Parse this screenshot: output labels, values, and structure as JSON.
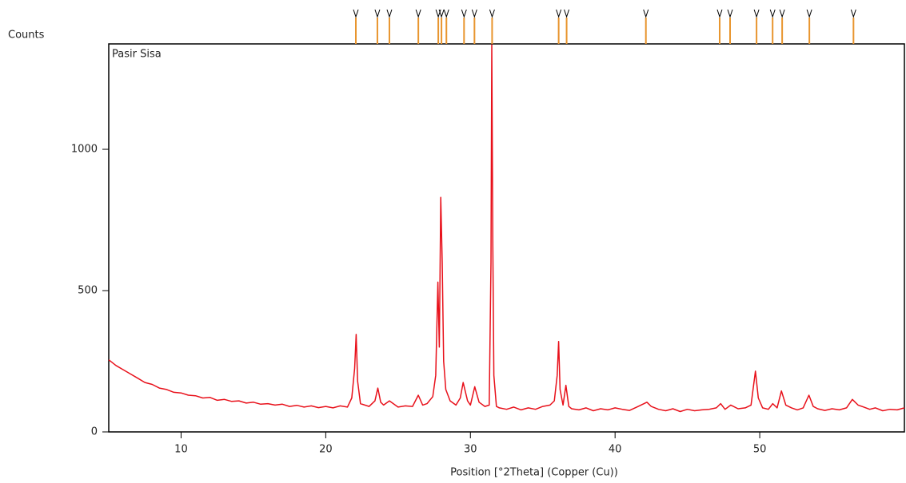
{
  "chart_data": {
    "type": "line",
    "y_label": "Counts",
    "x_label": "Position [°2Theta] (Copper (Cu))",
    "xlim": [
      5,
      60
    ],
    "ylim": [
      0,
      1373
    ],
    "xticks": [
      10,
      20,
      30,
      40,
      50
    ],
    "yticks": [
      0,
      500,
      1000
    ],
    "reference_peaks": [
      22.08,
      23.57,
      24.4,
      26.4,
      27.78,
      28.0,
      28.34,
      29.56,
      30.28,
      31.5,
      36.1,
      36.65,
      42.13,
      47.23,
      47.95,
      49.78,
      50.89,
      51.55,
      53.43,
      56.48
    ],
    "reference_color": "#e8952e",
    "x": [
      5,
      5.5,
      6,
      6.5,
      7,
      7.5,
      8,
      8.5,
      9,
      9.5,
      10,
      10.5,
      11,
      11.5,
      12,
      12.5,
      13,
      13.5,
      14,
      14.5,
      15,
      15.5,
      16,
      16.5,
      17,
      17.5,
      18,
      18.5,
      19,
      19.5,
      20,
      20.5,
      21,
      21.5,
      21.8,
      22,
      22.1,
      22.2,
      22.4,
      23,
      23.4,
      23.6,
      23.8,
      24,
      24.4,
      25,
      25.5,
      26,
      26.4,
      26.7,
      27,
      27.4,
      27.6,
      27.75,
      27.85,
      27.95,
      28.05,
      28.15,
      28.3,
      28.6,
      29,
      29.3,
      29.5,
      29.8,
      30,
      30.3,
      30.6,
      31,
      31.3,
      31.42,
      31.48,
      31.55,
      31.62,
      31.8,
      32,
      32.5,
      33,
      33.5,
      34,
      34.5,
      35,
      35.5,
      35.8,
      36,
      36.1,
      36.2,
      36.4,
      36.6,
      36.8,
      37,
      37.5,
      38,
      38.5,
      39,
      39.5,
      40,
      40.5,
      41,
      41.5,
      42,
      42.2,
      42.5,
      43,
      43.5,
      44,
      44.5,
      45,
      45.5,
      46,
      46.5,
      47,
      47.3,
      47.6,
      48,
      48.5,
      49,
      49.4,
      49.7,
      49.9,
      50.2,
      50.6,
      50.9,
      51.2,
      51.5,
      51.8,
      52.2,
      52.6,
      53,
      53.4,
      53.7,
      54,
      54.5,
      55,
      55.5,
      56,
      56.4,
      56.8,
      57.2,
      57.6,
      58,
      58.5,
      59,
      59.5,
      60
    ],
    "series": [
      {
        "name": "Pasir Sisa",
        "color": "#e8101a",
        "values": [
          255,
          235,
          220,
          205,
          190,
          175,
          168,
          155,
          150,
          140,
          138,
          130,
          128,
          120,
          122,
          112,
          115,
          108,
          110,
          102,
          105,
          98,
          100,
          95,
          98,
          90,
          94,
          88,
          92,
          86,
          90,
          85,
          92,
          88,
          120,
          225,
          345,
          180,
          100,
          90,
          110,
          155,
          105,
          95,
          110,
          88,
          92,
          90,
          130,
          95,
          100,
          125,
          200,
          530,
          300,
          830,
          600,
          250,
          150,
          110,
          95,
          120,
          175,
          110,
          95,
          160,
          105,
          90,
          95,
          600,
          1370,
          660,
          200,
          90,
          85,
          80,
          88,
          78,
          85,
          80,
          90,
          95,
          110,
          200,
          320,
          150,
          95,
          165,
          90,
          82,
          78,
          85,
          75,
          82,
          78,
          85,
          80,
          76,
          88,
          100,
          105,
          90,
          80,
          75,
          82,
          72,
          80,
          75,
          78,
          80,
          85,
          100,
          80,
          95,
          82,
          85,
          95,
          215,
          120,
          85,
          80,
          100,
          85,
          145,
          95,
          85,
          78,
          85,
          130,
          90,
          82,
          76,
          82,
          78,
          85,
          115,
          95,
          88,
          80,
          85,
          75,
          80,
          78,
          85
        ]
      }
    ]
  }
}
